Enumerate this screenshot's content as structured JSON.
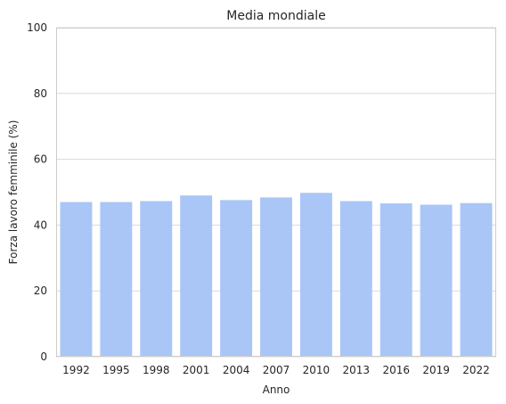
{
  "chart_data": {
    "type": "bar",
    "title": "Media mondiale",
    "xlabel": "Anno",
    "ylabel": "Forza lavoro femminile (%)",
    "categories": [
      "1992",
      "1995",
      "1998",
      "2001",
      "2004",
      "2007",
      "2010",
      "2013",
      "2016",
      "2019",
      "2022"
    ],
    "values": [
      47.0,
      47.0,
      47.3,
      49.0,
      47.6,
      48.4,
      49.8,
      47.3,
      46.6,
      46.2,
      46.7
    ],
    "ylim": [
      0,
      100
    ],
    "yticks": [
      "0",
      "20",
      "40",
      "60",
      "80",
      "100"
    ],
    "grid": "horizontal",
    "bar_color": "#a9c6f7",
    "grid_color": "#d9d9d9"
  }
}
